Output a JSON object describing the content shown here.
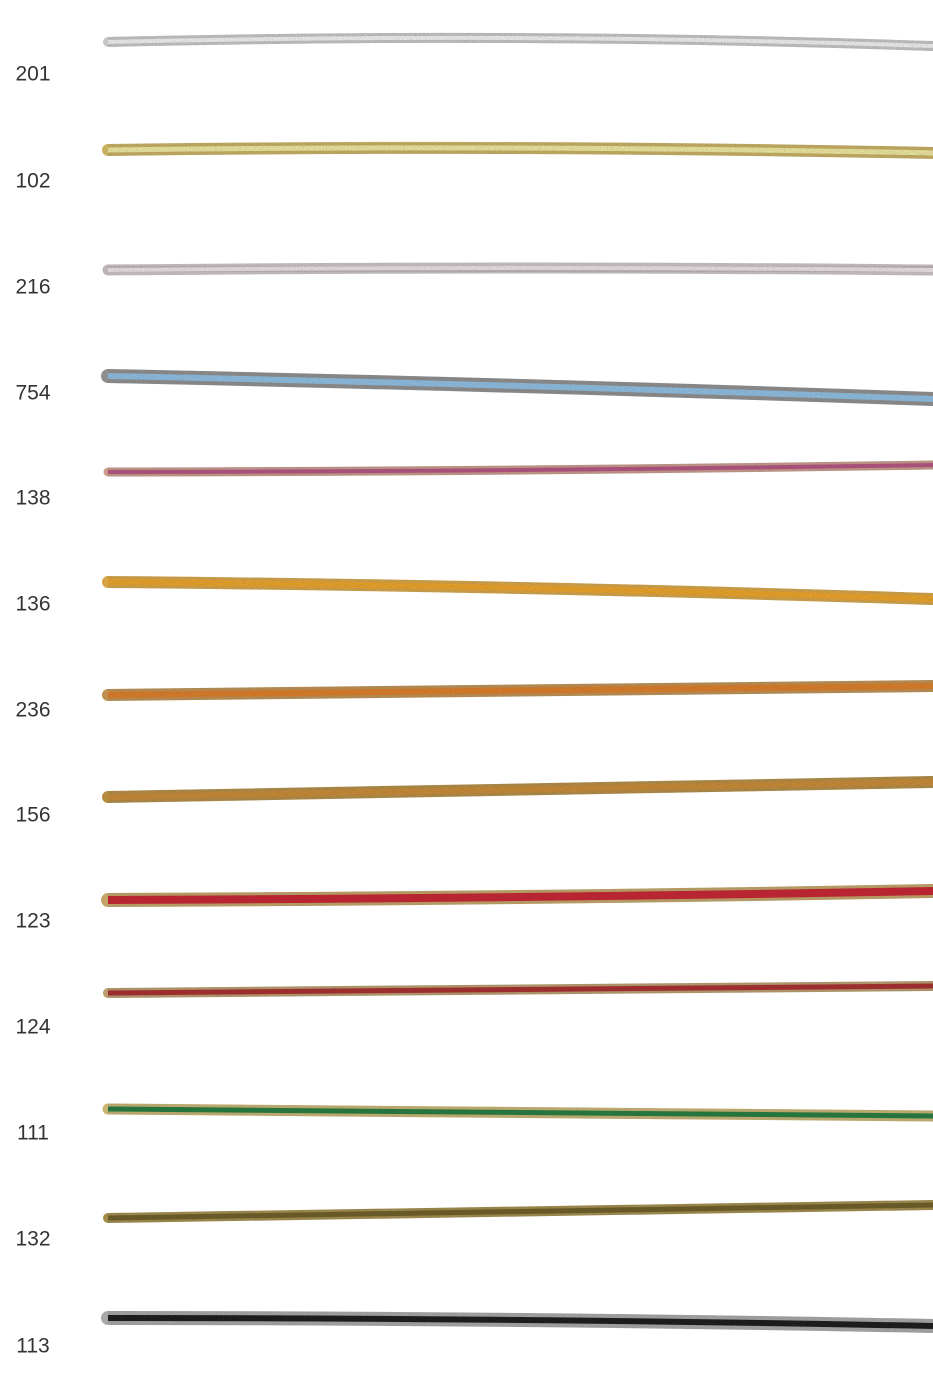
{
  "swatches": [
    {
      "label": "201"
    },
    {
      "label": "102"
    },
    {
      "label": "216"
    },
    {
      "label": "754"
    },
    {
      "label": "138"
    },
    {
      "label": "136"
    },
    {
      "label": "236"
    },
    {
      "label": "156"
    },
    {
      "label": "123"
    },
    {
      "label": "124"
    },
    {
      "label": "111"
    },
    {
      "label": "132"
    },
    {
      "label": "113"
    }
  ]
}
